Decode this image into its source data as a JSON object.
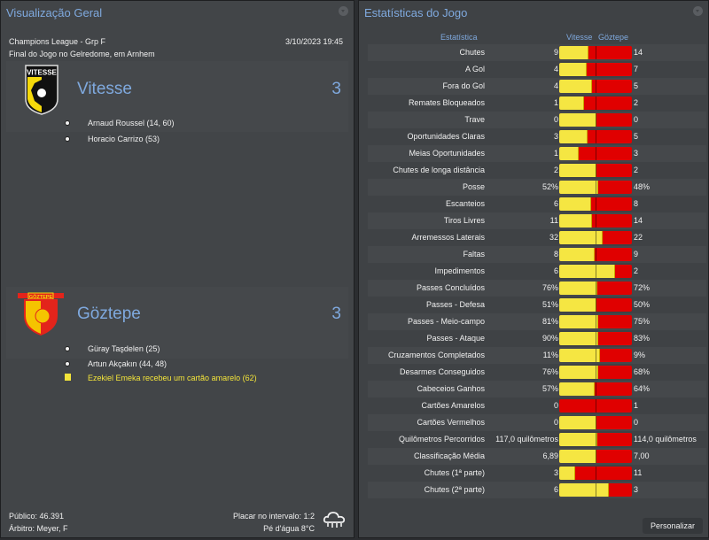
{
  "overview": {
    "title": "Visualização Geral",
    "competition": "Champions League - Grp F",
    "datetime": "3/10/2023 19:45",
    "venue": "Final do Jogo no Gelredome, em Arnhem",
    "home": {
      "name": "Vitesse",
      "score": "3",
      "events": [
        {
          "type": "goal",
          "text": "Arnaud Roussel (14, 60)"
        },
        {
          "type": "goal",
          "text": "Horacio Carrizo (53)"
        }
      ]
    },
    "away": {
      "name": "Göztepe",
      "score": "3",
      "events": [
        {
          "type": "goal",
          "text": "Güray Taşdelen (25)"
        },
        {
          "type": "goal",
          "text": "Artun Akçakın (44, 48)"
        },
        {
          "type": "yellow-card",
          "text": "Ezekiel Emeka recebeu um cartão amarelo (62)"
        }
      ]
    },
    "footer": {
      "attendance": "Público: 46.391",
      "referee": "Árbitro: Meyer, F",
      "halftime": "Placar no intervalo: 1:2",
      "weather": "Pé d'água 8°C",
      "weather_icon": "rain-cloud-icon"
    }
  },
  "stats": {
    "title": "Estatísticas do Jogo",
    "col_stat": "Estatística",
    "col_home": "Vitesse",
    "col_away": "Göztepe",
    "colors": {
      "home": "#f5e642",
      "away": "#e00000"
    },
    "rows": [
      {
        "label": "Chutes",
        "home": "9",
        "away": "14",
        "share": 0.39
      },
      {
        "label": "A Gol",
        "home": "4",
        "away": "7",
        "share": 0.36
      },
      {
        "label": "Fora do Gol",
        "home": "4",
        "away": "5",
        "share": 0.44
      },
      {
        "label": "Remates Bloqueados",
        "home": "1",
        "away": "2",
        "share": 0.33
      },
      {
        "label": "Trave",
        "home": "0",
        "away": "0",
        "share": 0.5
      },
      {
        "label": "Oportunidades Claras",
        "home": "3",
        "away": "5",
        "share": 0.375
      },
      {
        "label": "Meias Oportunidades",
        "home": "1",
        "away": "3",
        "share": 0.25
      },
      {
        "label": "Chutes de longa distância",
        "home": "2",
        "away": "2",
        "share": 0.5
      },
      {
        "label": "Posse",
        "home": "52%",
        "away": "48%",
        "share": 0.52
      },
      {
        "label": "Escanteios",
        "home": "6",
        "away": "8",
        "share": 0.43
      },
      {
        "label": "Tiros Livres",
        "home": "11",
        "away": "14",
        "share": 0.44
      },
      {
        "label": "Arremessos Laterais",
        "home": "32",
        "away": "22",
        "share": 0.59
      },
      {
        "label": "Faltas",
        "home": "8",
        "away": "9",
        "share": 0.47
      },
      {
        "label": "Impedimentos",
        "home": "6",
        "away": "2",
        "share": 0.75
      },
      {
        "label": "Passes Concluídos",
        "home": "76%",
        "away": "72%",
        "share": 0.51
      },
      {
        "label": "Passes - Defesa",
        "home": "51%",
        "away": "50%",
        "share": 0.5
      },
      {
        "label": "Passes - Meio-campo",
        "home": "81%",
        "away": "75%",
        "share": 0.52
      },
      {
        "label": "Passes - Ataque",
        "home": "90%",
        "away": "83%",
        "share": 0.52
      },
      {
        "label": "Cruzamentos Completados",
        "home": "11%",
        "away": "9%",
        "share": 0.55
      },
      {
        "label": "Desarmes Conseguidos",
        "home": "76%",
        "away": "68%",
        "share": 0.53
      },
      {
        "label": "Cabeceios Ganhos",
        "home": "57%",
        "away": "64%",
        "share": 0.47
      },
      {
        "label": "Cartões Amarelos",
        "home": "0",
        "away": "1",
        "share": 0
      },
      {
        "label": "Cartões Vermelhos",
        "home": "0",
        "away": "0",
        "share": 0.5
      },
      {
        "label": "Quilômetros Percorridos",
        "home": "117,0 quilômetros",
        "away": "114,0 quilômetros",
        "share": 0.51
      },
      {
        "label": "Classificação Média",
        "home": "6,89",
        "away": "7,00",
        "share": 0.5
      },
      {
        "label": "Chutes (1ª parte)",
        "home": "3",
        "away": "11",
        "share": 0.21
      },
      {
        "label": "Chutes (2ª parte)",
        "home": "6",
        "away": "3",
        "share": 0.67
      }
    ],
    "customize_label": "Personalizar"
  }
}
